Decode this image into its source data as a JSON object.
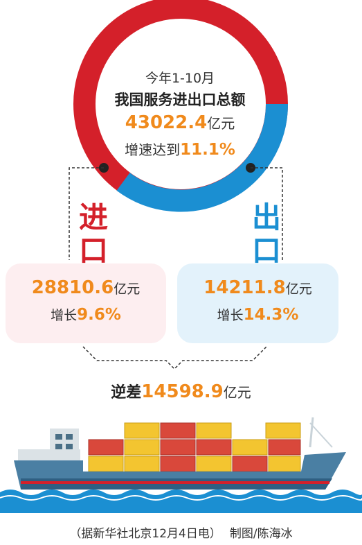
{
  "headline": {
    "period": "今年1-10月",
    "title": "我国服务进出口总额",
    "total_value": "43022.4",
    "total_unit": "亿元",
    "growth_label": "增速达到",
    "growth_value": "11.1%"
  },
  "imports": {
    "label": "进口",
    "value": "28810.6",
    "unit": "亿元",
    "growth_label": "增长",
    "growth_value": "9.6%"
  },
  "exports": {
    "label": "出口",
    "value": "14211.8",
    "unit": "亿元",
    "growth_label": "增长",
    "growth_value": "14.3%"
  },
  "deficit": {
    "label": "逆差",
    "value": "14598.9",
    "unit": "亿元"
  },
  "footer": {
    "source": "（据新华社北京12月4日电）",
    "credit": "制图/陈海冰"
  },
  "colors": {
    "import_red": "#d4202a",
    "export_blue": "#1b8fd2",
    "accent_orange": "#f08a1c"
  },
  "ring_split": {
    "imports_share": 0.67,
    "exports_share": 0.33
  }
}
